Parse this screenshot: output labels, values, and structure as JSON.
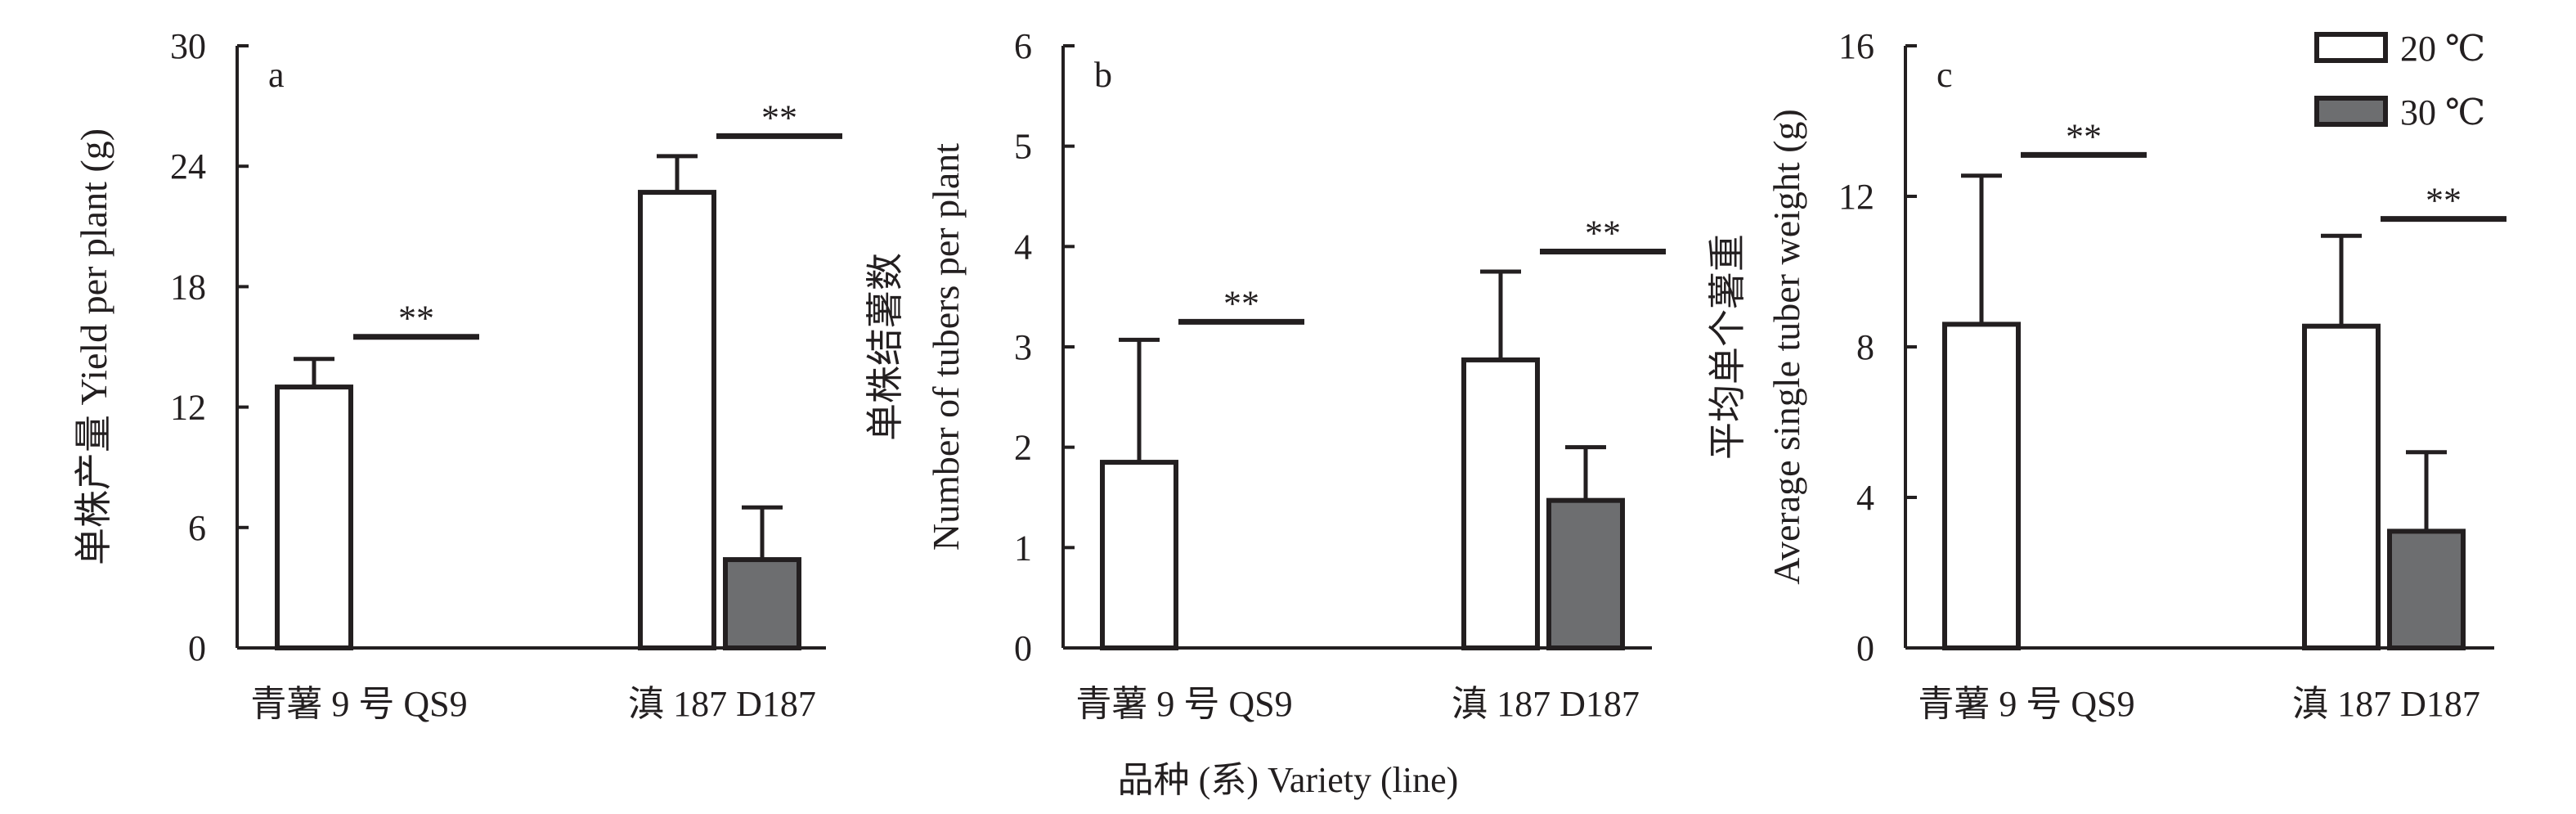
{
  "figure": {
    "xlabel": "品种 (系) Variety (line)",
    "legend": {
      "placement": "top-right",
      "items": [
        {
          "label": "20 ℃",
          "color": "#ffffff"
        },
        {
          "label": "30 ℃",
          "color": "#6d6e70"
        }
      ]
    }
  },
  "chart_data": [
    {
      "type": "bar",
      "panel_label": "a",
      "ylabel_line1": "单株产量 Yield per plant (g)",
      "ylabel_line2": "",
      "ylim": [
        0,
        30
      ],
      "yticks": [
        "0",
        "6",
        "12",
        "18",
        "24",
        "30"
      ],
      "categories": [
        "青薯 9 号 QS9",
        "滇 187 D187"
      ],
      "series": [
        {
          "name": "20 ℃",
          "values": [
            13.0,
            22.7
          ],
          "errors": [
            1.4,
            1.8
          ]
        },
        {
          "name": "30 ℃",
          "values": [
            0,
            4.4
          ],
          "errors": [
            0,
            2.6
          ]
        }
      ],
      "significance": [
        {
          "text": "**",
          "y": 15.5,
          "category": 0
        },
        {
          "text": "**",
          "y": 25.5,
          "category": 1
        }
      ]
    },
    {
      "type": "bar",
      "panel_label": "b",
      "ylabel_line1": "单株结薯数",
      "ylabel_line2": "Number of tubers per plant",
      "ylim": [
        0,
        6
      ],
      "yticks": [
        "0",
        "1",
        "2",
        "3",
        "4",
        "5",
        "6"
      ],
      "categories": [
        "青薯 9 号 QS9",
        "滇 187 D187"
      ],
      "series": [
        {
          "name": "20 ℃",
          "values": [
            1.85,
            2.87
          ],
          "errors": [
            1.22,
            0.88
          ]
        },
        {
          "name": "30 ℃",
          "values": [
            0,
            1.47
          ],
          "errors": [
            0,
            0.53
          ]
        }
      ],
      "significance": [
        {
          "text": "**",
          "y": 3.25,
          "category": 0
        },
        {
          "text": "**",
          "y": 3.95,
          "category": 1
        }
      ]
    },
    {
      "type": "bar",
      "panel_label": "c",
      "ylabel_line1": "平均单个薯重",
      "ylabel_line2": "Average single tuber weight (g)",
      "ylim": [
        0,
        16
      ],
      "yticks": [
        "0",
        "4",
        "8",
        "12",
        "16"
      ],
      "categories": [
        "青薯 9 号 QS9",
        "滇 187 D187"
      ],
      "series": [
        {
          "name": "20 ℃",
          "values": [
            8.6,
            8.55
          ],
          "errors": [
            3.95,
            2.4
          ]
        },
        {
          "name": "30 ℃",
          "values": [
            0,
            3.1
          ],
          "errors": [
            0,
            2.1
          ]
        }
      ],
      "significance": [
        {
          "text": "**",
          "y": 13.1,
          "category": 0
        },
        {
          "text": "**",
          "y": 11.4,
          "category": 1
        }
      ]
    }
  ]
}
